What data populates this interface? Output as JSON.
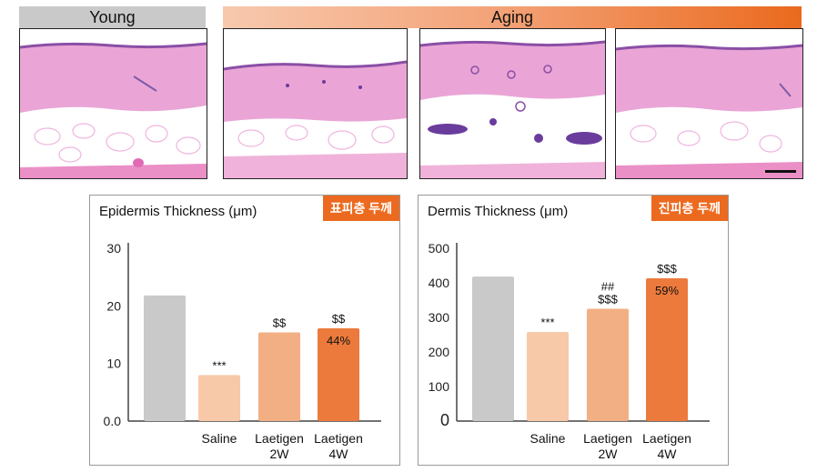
{
  "headers": {
    "young": "Young",
    "aging": "Aging"
  },
  "colors": {
    "young": "#c9c9c9",
    "saline": "#f8c9a8",
    "laetigen_2w": "#f3af84",
    "laetigen_4w": "#ec7a3c",
    "tag": "#ec6a1f",
    "tissue": "#e9a0d3",
    "nuclei": "#6a3c9c"
  },
  "chart_data": [
    {
      "type": "bar",
      "title": "Epidermis Thickness (μm)",
      "tag": "표피층 두께",
      "categories": [
        "",
        "Saline",
        "Laetigen\n2W",
        "Laetigen\n4W"
      ],
      "values": [
        21.8,
        8,
        15.4,
        16.1
      ],
      "annotations": [
        "",
        "***",
        "$$",
        "$$"
      ],
      "inside_labels": [
        "",
        "",
        "",
        "44%"
      ],
      "yticks": [
        "0.0",
        "10",
        "20",
        "30"
      ],
      "ytick_values": [
        0,
        10,
        20,
        30
      ],
      "ylim": [
        0,
        30
      ]
    },
    {
      "type": "bar",
      "title": "Dermis Thickness (μm)",
      "tag": "진피층 두께",
      "categories": [
        "",
        "Saline",
        "Laetigen\n2W",
        "Laetigen\n4W"
      ],
      "values": [
        418,
        258,
        325,
        413
      ],
      "annotations": [
        "",
        "***",
        "##\n$$$",
        "$$$"
      ],
      "inside_labels": [
        "",
        "",
        "",
        "59%"
      ],
      "yticks": [
        "0",
        "100",
        "200",
        "300",
        "400",
        "500"
      ],
      "ytick_values": [
        0,
        100,
        200,
        300,
        400,
        500
      ],
      "ylim": [
        0,
        500
      ]
    }
  ]
}
